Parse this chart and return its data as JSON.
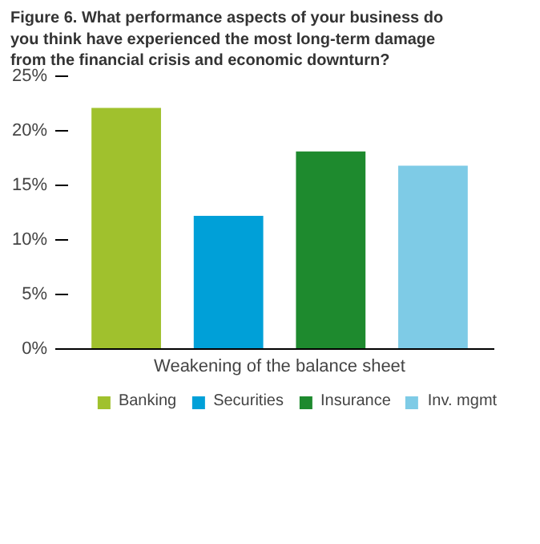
{
  "chart_data": {
    "type": "bar",
    "title": "Figure 6. What performance aspects of your business do you think have experienced the most long-term damage from the financial crisis and economic downturn?",
    "xlabel": "Weakening of the balance sheet",
    "categories": [
      null
    ],
    "series": [
      {
        "name": "Banking",
        "color": "#a0c12d",
        "values": [
          22.1
        ]
      },
      {
        "name": "Securities",
        "color": "#00a0d8",
        "values": [
          12.2
        ]
      },
      {
        "name": "Insurance",
        "color": "#1e8a2e",
        "values": [
          18.1
        ]
      },
      {
        "name": "Inv. mgmt",
        "color": "#7ecbe6",
        "values": [
          16.8
        ]
      }
    ],
    "ylim": [
      0,
      25
    ],
    "yticks": [
      {
        "value": 0,
        "label": "0%"
      },
      {
        "value": 5,
        "label": "5%"
      },
      {
        "value": 10,
        "label": "10%"
      },
      {
        "value": 15,
        "label": "15%"
      },
      {
        "value": 20,
        "label": "20%"
      },
      {
        "value": 25,
        "label": "25%"
      }
    ],
    "grid": false,
    "legend": "bottom"
  }
}
